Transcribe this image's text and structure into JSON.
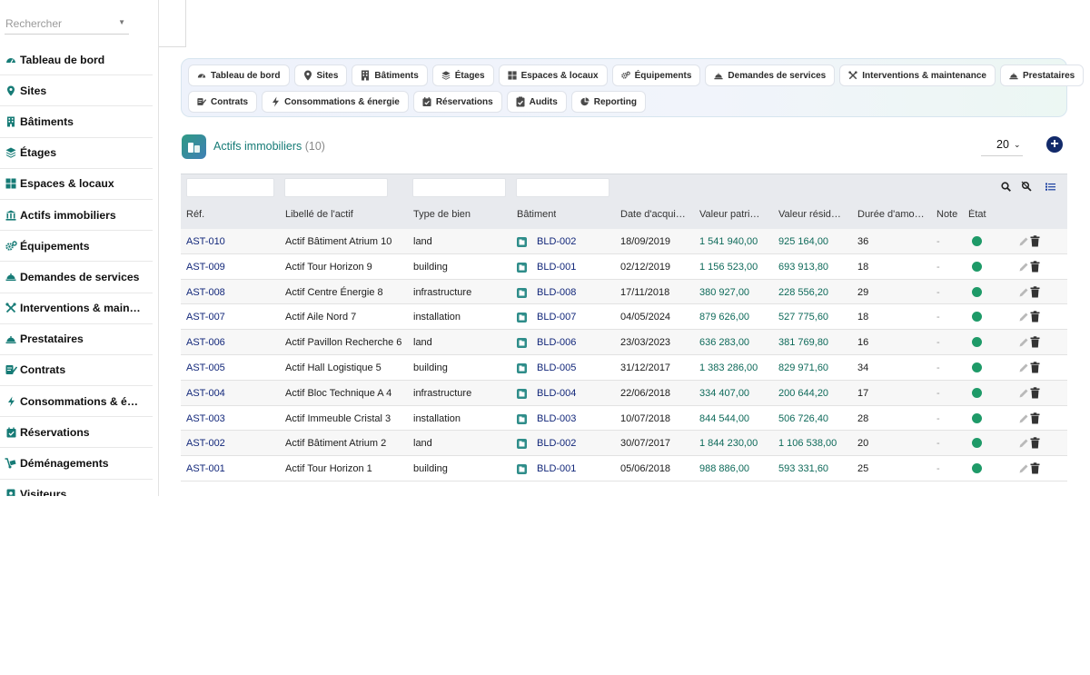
{
  "sidebar": {
    "search_placeholder": "Rechercher",
    "items": [
      {
        "label": "Tableau de bord",
        "icon": "dashboard-icon"
      },
      {
        "label": "Sites",
        "icon": "map-pin-icon"
      },
      {
        "label": "Bâtiments",
        "icon": "building-icon"
      },
      {
        "label": "Étages",
        "icon": "layers-icon"
      },
      {
        "label": "Espaces & locaux",
        "icon": "grid-icon"
      },
      {
        "label": "Actifs immobiliers",
        "icon": "landmark-icon"
      },
      {
        "label": "Équipements",
        "icon": "gears-icon"
      },
      {
        "label": "Demandes de services",
        "icon": "service-bell-icon"
      },
      {
        "label": "Interventions & main…",
        "icon": "tools-icon"
      },
      {
        "label": "Prestataires",
        "icon": "service-bell-icon"
      },
      {
        "label": "Contrats",
        "icon": "contract-icon"
      },
      {
        "label": "Consommations & é…",
        "icon": "bolt-icon"
      },
      {
        "label": "Réservations",
        "icon": "calendar-check-icon"
      },
      {
        "label": "Déménagements",
        "icon": "dolly-icon"
      },
      {
        "label": "Visiteurs",
        "icon": "id-badge-icon"
      }
    ]
  },
  "modules": {
    "row1": [
      {
        "label": "Tableau de bord",
        "icon": "dashboard-icon"
      },
      {
        "label": "Sites",
        "icon": "map-pin-icon"
      },
      {
        "label": "Bâtiments",
        "icon": "building-icon"
      },
      {
        "label": "Étages",
        "icon": "layers-icon"
      },
      {
        "label": "Espaces & locaux",
        "icon": "grid-icon"
      },
      {
        "label": "Équipements",
        "icon": "gears-icon"
      },
      {
        "label": "Demandes de services",
        "icon": "service-bell-icon"
      },
      {
        "label": "Interventions & maintenance",
        "icon": "tools-icon"
      },
      {
        "label": "Prestataires",
        "icon": "service-bell-icon"
      }
    ],
    "row2": [
      {
        "label": "Contrats",
        "icon": "contract-icon"
      },
      {
        "label": "Consommations & énergie",
        "icon": "bolt-icon"
      },
      {
        "label": "Réservations",
        "icon": "calendar-check-icon"
      },
      {
        "label": "Audits",
        "icon": "clipboard-check-icon"
      },
      {
        "label": "Reporting",
        "icon": "pie-chart-icon"
      }
    ]
  },
  "list": {
    "title": "Actifs immobiliers",
    "count": "(10)",
    "page_size": "20",
    "columns": [
      "Réf.",
      "Libellé de l'actif",
      "Type de bien",
      "Bâtiment",
      "Date d'acqui…",
      "Valeur patri…",
      "Valeur résid…",
      "Durée d'amo…",
      "Note",
      "État"
    ],
    "rows": [
      {
        "ref": "AST-010",
        "label": "Actif Bâtiment Atrium 10",
        "type": "land",
        "building": "BLD-002",
        "date": "18/09/2019",
        "value": "1 541 940,00",
        "residual": "925 164,00",
        "duration": "36",
        "note": "-"
      },
      {
        "ref": "AST-009",
        "label": "Actif Tour Horizon 9",
        "type": "building",
        "building": "BLD-001",
        "date": "02/12/2019",
        "value": "1 156 523,00",
        "residual": "693 913,80",
        "duration": "18",
        "note": "-"
      },
      {
        "ref": "AST-008",
        "label": "Actif Centre Énergie 8",
        "type": "infrastructure",
        "building": "BLD-008",
        "date": "17/11/2018",
        "value": "380 927,00",
        "residual": "228 556,20",
        "duration": "29",
        "note": "-"
      },
      {
        "ref": "AST-007",
        "label": "Actif Aile Nord 7",
        "type": "installation",
        "building": "BLD-007",
        "date": "04/05/2024",
        "value": "879 626,00",
        "residual": "527 775,60",
        "duration": "18",
        "note": "-"
      },
      {
        "ref": "AST-006",
        "label": "Actif Pavillon Recherche 6",
        "type": "land",
        "building": "BLD-006",
        "date": "23/03/2023",
        "value": "636 283,00",
        "residual": "381 769,80",
        "duration": "16",
        "note": "-"
      },
      {
        "ref": "AST-005",
        "label": "Actif Hall Logistique 5",
        "type": "building",
        "building": "BLD-005",
        "date": "31/12/2017",
        "value": "1 383 286,00",
        "residual": "829 971,60",
        "duration": "34",
        "note": "-"
      },
      {
        "ref": "AST-004",
        "label": "Actif Bloc Technique A 4",
        "type": "infrastructure",
        "building": "BLD-004",
        "date": "22/06/2018",
        "value": "334 407,00",
        "residual": "200 644,20",
        "duration": "17",
        "note": "-"
      },
      {
        "ref": "AST-003",
        "label": "Actif Immeuble Cristal 3",
        "type": "installation",
        "building": "BLD-003",
        "date": "10/07/2018",
        "value": "844 544,00",
        "residual": "506 726,40",
        "duration": "28",
        "note": "-"
      },
      {
        "ref": "AST-002",
        "label": "Actif Bâtiment Atrium 2",
        "type": "land",
        "building": "BLD-002",
        "date": "30/07/2017",
        "value": "1 844 230,00",
        "residual": "1 106 538,00",
        "duration": "20",
        "note": "-"
      },
      {
        "ref": "AST-001",
        "label": "Actif Tour Horizon 1",
        "type": "building",
        "building": "BLD-001",
        "date": "05/06/2018",
        "value": "988 886,00",
        "residual": "593 331,60",
        "duration": "25",
        "note": "-"
      }
    ]
  },
  "colors": {
    "accent": "#167b76",
    "link": "#12277a",
    "money": "#0e6a5a",
    "status_ok": "#1e9a68",
    "add_button": "#122a6a"
  }
}
